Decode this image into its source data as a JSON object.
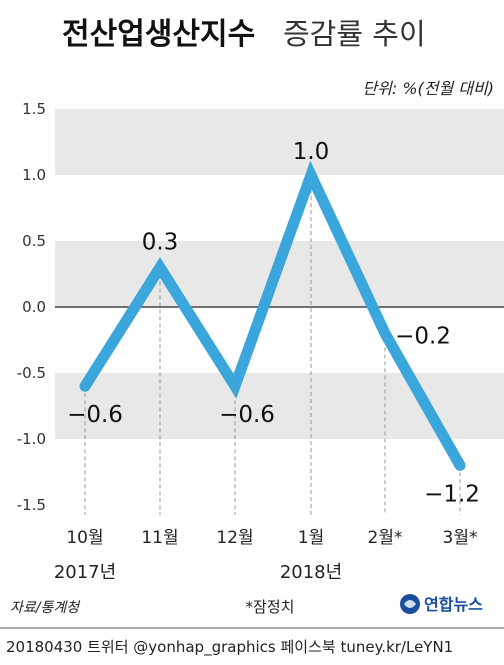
{
  "title": {
    "main": "전산업생산지수",
    "sub": "증감률 추이"
  },
  "unit": "단위: %(전월 대비)",
  "chart_data": {
    "type": "line",
    "categories": [
      "10월",
      "11월",
      "12월",
      "1월",
      "2월*",
      "3월*"
    ],
    "year_labels": [
      {
        "text": "2017년",
        "under_category": 0
      },
      {
        "text": "2018년",
        "under_category": 3
      }
    ],
    "series": [
      {
        "values": [
          -0.6,
          0.3,
          -0.6,
          1.0,
          -0.2,
          -1.2
        ],
        "labels": [
          "−0.6",
          "0.3",
          "−0.6",
          "1.0",
          "−0.2",
          "−1.2"
        ],
        "color": "#3aa6dc"
      }
    ],
    "ylim": [
      -1.5,
      1.5
    ],
    "yticks": [
      "1.5",
      "1.0",
      "0.5",
      "0.0",
      "-0.5",
      "-1.0",
      "-1.5"
    ],
    "ytick_values": [
      1.5,
      1.0,
      0.5,
      0.0,
      -0.5,
      -1.0,
      -1.5
    ],
    "grid": "alternating horizontal bands",
    "band_color": "#e8e8e8",
    "legend": "none"
  },
  "footer": {
    "source": "자료/통계청",
    "note": "*잠정치",
    "brand": "연합뉴스",
    "credit": "20180430 트위터 @yonhap_graphics  페이스북 tuney.kr/LeYN1"
  }
}
